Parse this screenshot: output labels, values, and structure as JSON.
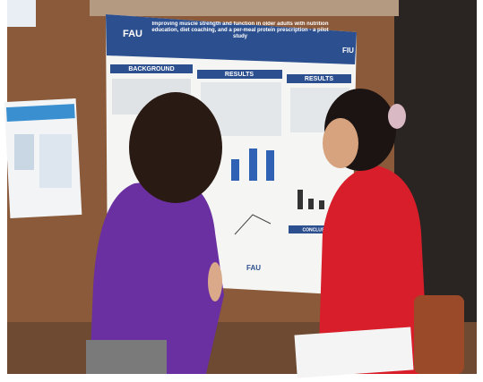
{
  "poster": {
    "logo_left": "FAU",
    "logo_right": "FIU",
    "title": "Improving muscle strength and function in older adults with nutrition education, diet coaching, and a per-meal protein prescription - a pilot study",
    "sections": [
      "BACKGROUND",
      "RESULTS",
      "RESULTS",
      "CONCLUSIONS"
    ],
    "footer_logo": "FAU"
  }
}
